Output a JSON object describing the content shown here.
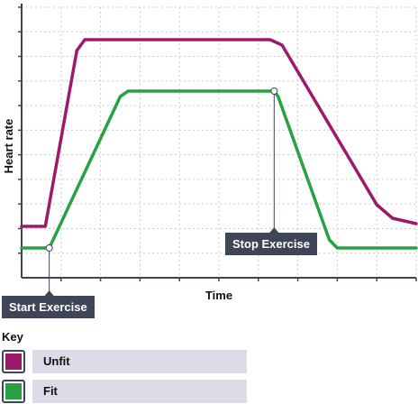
{
  "chart_data": {
    "type": "line",
    "ylabel": "Heart rate",
    "xlabel": "Time",
    "grid": true,
    "xlim": [
      0,
      100
    ],
    "ylim": [
      0,
      100
    ],
    "series": [
      {
        "name": "Unfit",
        "color": "#9b1a6a",
        "x": [
          0,
          6,
          14,
          16,
          63,
          66,
          90,
          94,
          100
        ],
        "y": [
          19,
          19,
          84,
          88,
          88,
          86,
          27,
          22,
          20
        ]
      },
      {
        "name": "Fit",
        "color": "#28a044",
        "x": [
          0,
          7,
          25,
          27,
          64,
          65,
          78,
          80,
          100
        ],
        "y": [
          11,
          11,
          67,
          69,
          69,
          67,
          14,
          11,
          11
        ]
      }
    ],
    "annotations": [
      {
        "label": "Start Exercise",
        "x": 7,
        "y": 11
      },
      {
        "label": "Stop Exercise",
        "x": 64,
        "y": 69
      }
    ]
  },
  "key": {
    "title": "Key",
    "items": [
      {
        "label": "Unfit",
        "color": "#9b1a6a"
      },
      {
        "label": "Fit",
        "color": "#28a044"
      }
    ]
  }
}
